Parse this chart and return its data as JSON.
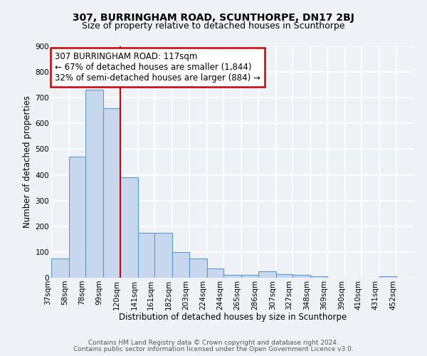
{
  "title": "307, BURRINGHAM ROAD, SCUNTHORPE, DN17 2BJ",
  "subtitle": "Size of property relative to detached houses in Scunthorpe",
  "xlabel": "Distribution of detached houses by size in Scunthorpe",
  "ylabel": "Number of detached properties",
  "bin_labels": [
    "37sqm",
    "58sqm",
    "78sqm",
    "99sqm",
    "120sqm",
    "141sqm",
    "161sqm",
    "182sqm",
    "203sqm",
    "224sqm",
    "244sqm",
    "265sqm",
    "286sqm",
    "307sqm",
    "327sqm",
    "348sqm",
    "369sqm",
    "390sqm",
    "410sqm",
    "431sqm",
    "452sqm"
  ],
  "bar_values": [
    75,
    472,
    730,
    660,
    390,
    175,
    175,
    100,
    75,
    35,
    10,
    10,
    25,
    15,
    10,
    5,
    0,
    0,
    0,
    5,
    0
  ],
  "bin_edges": [
    37,
    58,
    78,
    99,
    120,
    141,
    161,
    182,
    203,
    224,
    244,
    265,
    286,
    307,
    327,
    348,
    369,
    390,
    410,
    431,
    452
  ],
  "bar_color": "#c8d8ec",
  "bar_edge_color": "#5b9bd5",
  "redline_x": 120,
  "annotation_title": "307 BURRINGHAM ROAD: 117sqm",
  "annotation_line1": "← 67% of detached houses are smaller (1,844)",
  "annotation_line2": "32% of semi-detached houses are larger (884) →",
  "annotation_box_color": "#ffffff",
  "annotation_box_edge": "#cc0000",
  "redline_color": "#cc0000",
  "ylim": [
    0,
    900
  ],
  "yticks": [
    0,
    100,
    200,
    300,
    400,
    500,
    600,
    700,
    800,
    900
  ],
  "footnote1": "Contains HM Land Registry data © Crown copyright and database right 2024.",
  "footnote2": "Contains public sector information licensed under the Open Government Licence v3.0.",
  "background_color": "#eef2f7",
  "grid_color": "#ffffff",
  "title_fontsize": 10,
  "subtitle_fontsize": 9,
  "axis_label_fontsize": 8.5,
  "tick_fontsize": 7.5,
  "annotation_fontsize": 8.5,
  "footnote_fontsize": 6.5
}
